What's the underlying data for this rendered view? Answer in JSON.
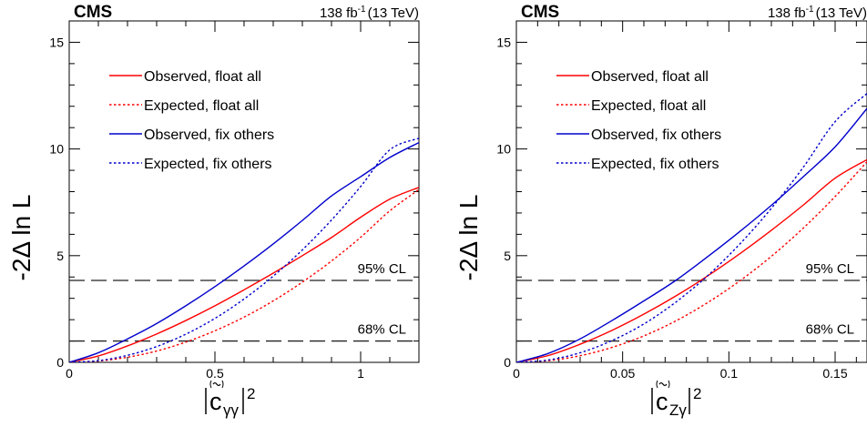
{
  "chart_data": [
    {
      "type": "line",
      "header": {
        "experiment": "CMS",
        "luminosity": "138 fb",
        "lumi_exponent": "-1",
        "energy": "(13 TeV)"
      },
      "xlabel": {
        "symbol": "c",
        "subscript": "γγ",
        "exponent": "2"
      },
      "ylabel": "-2Δ ln L",
      "xlim": [
        0,
        1.2
      ],
      "ylim": [
        0,
        16
      ],
      "x_ticks": [
        "0",
        "0.5",
        "1"
      ],
      "y_ticks": [
        "0",
        "5",
        "10",
        "15"
      ],
      "reference_lines": [
        {
          "label": "95% CL",
          "y": 3.84
        },
        {
          "label": "68% CL",
          "y": 1.0
        }
      ],
      "legend_position": "top-left",
      "series": [
        {
          "name": "Observed, float all",
          "color": "#ff0000",
          "style": "solid",
          "x": [
            0,
            0.1,
            0.2,
            0.3,
            0.4,
            0.5,
            0.6,
            0.7,
            0.8,
            0.9,
            1.0,
            1.1,
            1.2
          ],
          "y": [
            0,
            0.3,
            0.77,
            1.33,
            1.96,
            2.65,
            3.4,
            4.18,
            5.0,
            5.85,
            6.8,
            7.65,
            8.2
          ]
        },
        {
          "name": "Expected, float all",
          "color": "#ff0000",
          "style": "dotted",
          "x": [
            0,
            0.1,
            0.2,
            0.3,
            0.4,
            0.5,
            0.6,
            0.7,
            0.8,
            0.9,
            1.0,
            1.1,
            1.2
          ],
          "y": [
            0,
            0.06,
            0.24,
            0.53,
            0.95,
            1.48,
            2.12,
            2.88,
            3.76,
            4.75,
            5.86,
            7.1,
            8.1
          ]
        },
        {
          "name": "Observed, fix others",
          "color": "#0000cc",
          "style": "solid",
          "x": [
            0,
            0.1,
            0.2,
            0.3,
            0.4,
            0.5,
            0.6,
            0.7,
            0.8,
            0.9,
            1.0,
            1.1,
            1.2
          ],
          "y": [
            0,
            0.45,
            1.1,
            1.82,
            2.65,
            3.55,
            4.52,
            5.55,
            6.65,
            7.8,
            8.7,
            9.6,
            10.3
          ]
        },
        {
          "name": "Expected, fix others",
          "color": "#0000cc",
          "style": "dotted",
          "x": [
            0,
            0.1,
            0.2,
            0.3,
            0.4,
            0.5,
            0.6,
            0.7,
            0.8,
            0.9,
            1.0,
            1.1,
            1.2
          ],
          "y": [
            0,
            0.08,
            0.33,
            0.74,
            1.32,
            2.06,
            2.97,
            4.04,
            5.27,
            6.67,
            8.24,
            9.96,
            10.5
          ]
        }
      ]
    },
    {
      "type": "line",
      "header": {
        "experiment": "CMS",
        "luminosity": "138 fb",
        "lumi_exponent": "-1",
        "energy": "(13 TeV)"
      },
      "xlabel": {
        "symbol": "c",
        "subscript": "Zγ",
        "exponent": "2"
      },
      "ylabel": "-2Δ ln L",
      "xlim": [
        0,
        0.165
      ],
      "ylim": [
        0,
        16
      ],
      "x_ticks": [
        "0",
        "0.05",
        "0.1",
        "0.15"
      ],
      "y_ticks": [
        "0",
        "5",
        "10",
        "15"
      ],
      "reference_lines": [
        {
          "label": "95% CL",
          "y": 3.84
        },
        {
          "label": "68% CL",
          "y": 1.0
        }
      ],
      "legend_position": "top-left",
      "series": [
        {
          "name": "Observed, float all",
          "color": "#ff0000",
          "style": "solid",
          "x": [
            0,
            0.015,
            0.03,
            0.045,
            0.06,
            0.075,
            0.09,
            0.105,
            0.12,
            0.135,
            0.15,
            0.165
          ],
          "y": [
            0,
            0.32,
            0.85,
            1.5,
            2.26,
            3.11,
            4.05,
            5.08,
            6.19,
            7.37,
            8.63,
            9.5
          ]
        },
        {
          "name": "Expected, float all",
          "color": "#ff0000",
          "style": "dotted",
          "x": [
            0,
            0.015,
            0.03,
            0.045,
            0.06,
            0.075,
            0.09,
            0.105,
            0.12,
            0.135,
            0.15,
            0.165
          ],
          "y": [
            0,
            0.08,
            0.31,
            0.7,
            1.24,
            1.94,
            2.8,
            3.81,
            4.97,
            6.29,
            7.77,
            9.4
          ]
        },
        {
          "name": "Observed, fix others",
          "color": "#0000cc",
          "style": "solid",
          "x": [
            0,
            0.015,
            0.03,
            0.045,
            0.06,
            0.075,
            0.09,
            0.105,
            0.12,
            0.135,
            0.15,
            0.165
          ],
          "y": [
            0,
            0.42,
            1.1,
            1.96,
            2.88,
            3.84,
            4.95,
            6.12,
            7.36,
            8.7,
            10.1,
            11.9
          ]
        },
        {
          "name": "Expected, fix others",
          "color": "#0000cc",
          "style": "dotted",
          "x": [
            0,
            0.015,
            0.03,
            0.045,
            0.06,
            0.075,
            0.09,
            0.105,
            0.12,
            0.135,
            0.15,
            0.165
          ],
          "y": [
            0,
            0.11,
            0.45,
            1.02,
            1.8,
            2.82,
            4.06,
            5.53,
            7.22,
            9.14,
            11.28,
            12.6
          ]
        }
      ]
    }
  ]
}
